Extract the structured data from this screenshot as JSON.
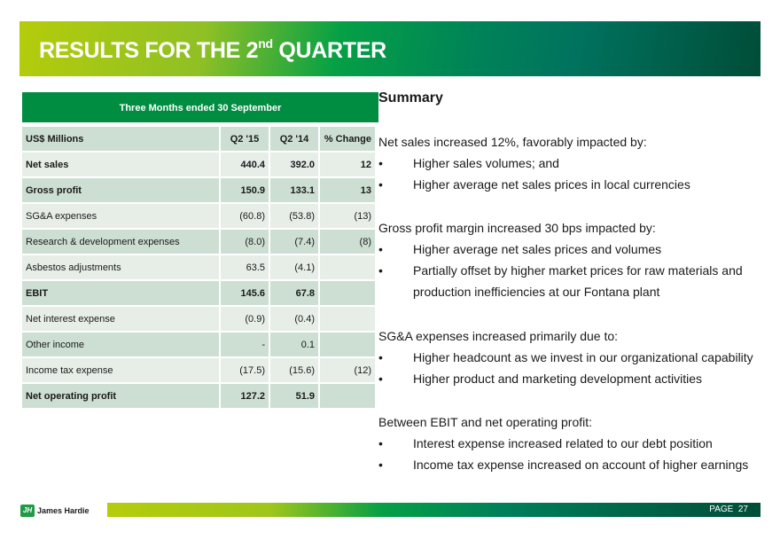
{
  "title": {
    "main": "RESULTS FOR THE 2",
    "sup": "nd",
    "tail": " QUARTER"
  },
  "table": {
    "caption": "Three Months ended 30 September",
    "headers": [
      "US$ Millions",
      "Q2 '15",
      "Q2 '14",
      "% Change"
    ],
    "rows": [
      [
        "Net sales",
        "440.4",
        "392.0",
        "12"
      ],
      [
        "Gross profit",
        "150.9",
        "133.1",
        "13"
      ],
      [
        "SG&A expenses",
        "(60.8)",
        "(53.8)",
        "(13)"
      ],
      [
        "Research & development expenses",
        "(8.0)",
        "(7.4)",
        "(8)"
      ],
      [
        "Asbestos adjustments",
        "63.5",
        "(4.1)",
        ""
      ],
      [
        "EBIT",
        "145.6",
        "67.8",
        ""
      ],
      [
        "Net interest expense",
        "(0.9)",
        "(0.4)",
        ""
      ],
      [
        "Other income",
        "-",
        "0.1",
        ""
      ],
      [
        "Income tax expense",
        "(17.5)",
        "(15.6)",
        "(12)"
      ],
      [
        "Net operating profit",
        "127.2",
        "51.9",
        ""
      ]
    ]
  },
  "summary": {
    "heading": "Summary",
    "lines": [
      "Net sales increased 12%, favorably impacted by:",
      "Higher sales volumes; and",
      "Higher average net sales prices in local currencies",
      "Gross profit margin increased 30 bps impacted by:",
      "Higher average net sales prices and volumes",
      "Partially offset by higher market prices for raw materials and",
      "production inefficiencies at our Fontana plant",
      "SG&A expenses increased primarily due to:",
      "Higher headcount as we invest in our organizational capability",
      "Higher product and marketing development activities",
      "Between EBIT and net operating profit:",
      "Interest expense increased related to our debt position",
      "Income tax expense increased on account of higher earnings"
    ],
    "bullet": "•"
  },
  "footer": {
    "logo_text": "James Hardie",
    "logo_mark": "JH",
    "page": "PAGE  27"
  }
}
